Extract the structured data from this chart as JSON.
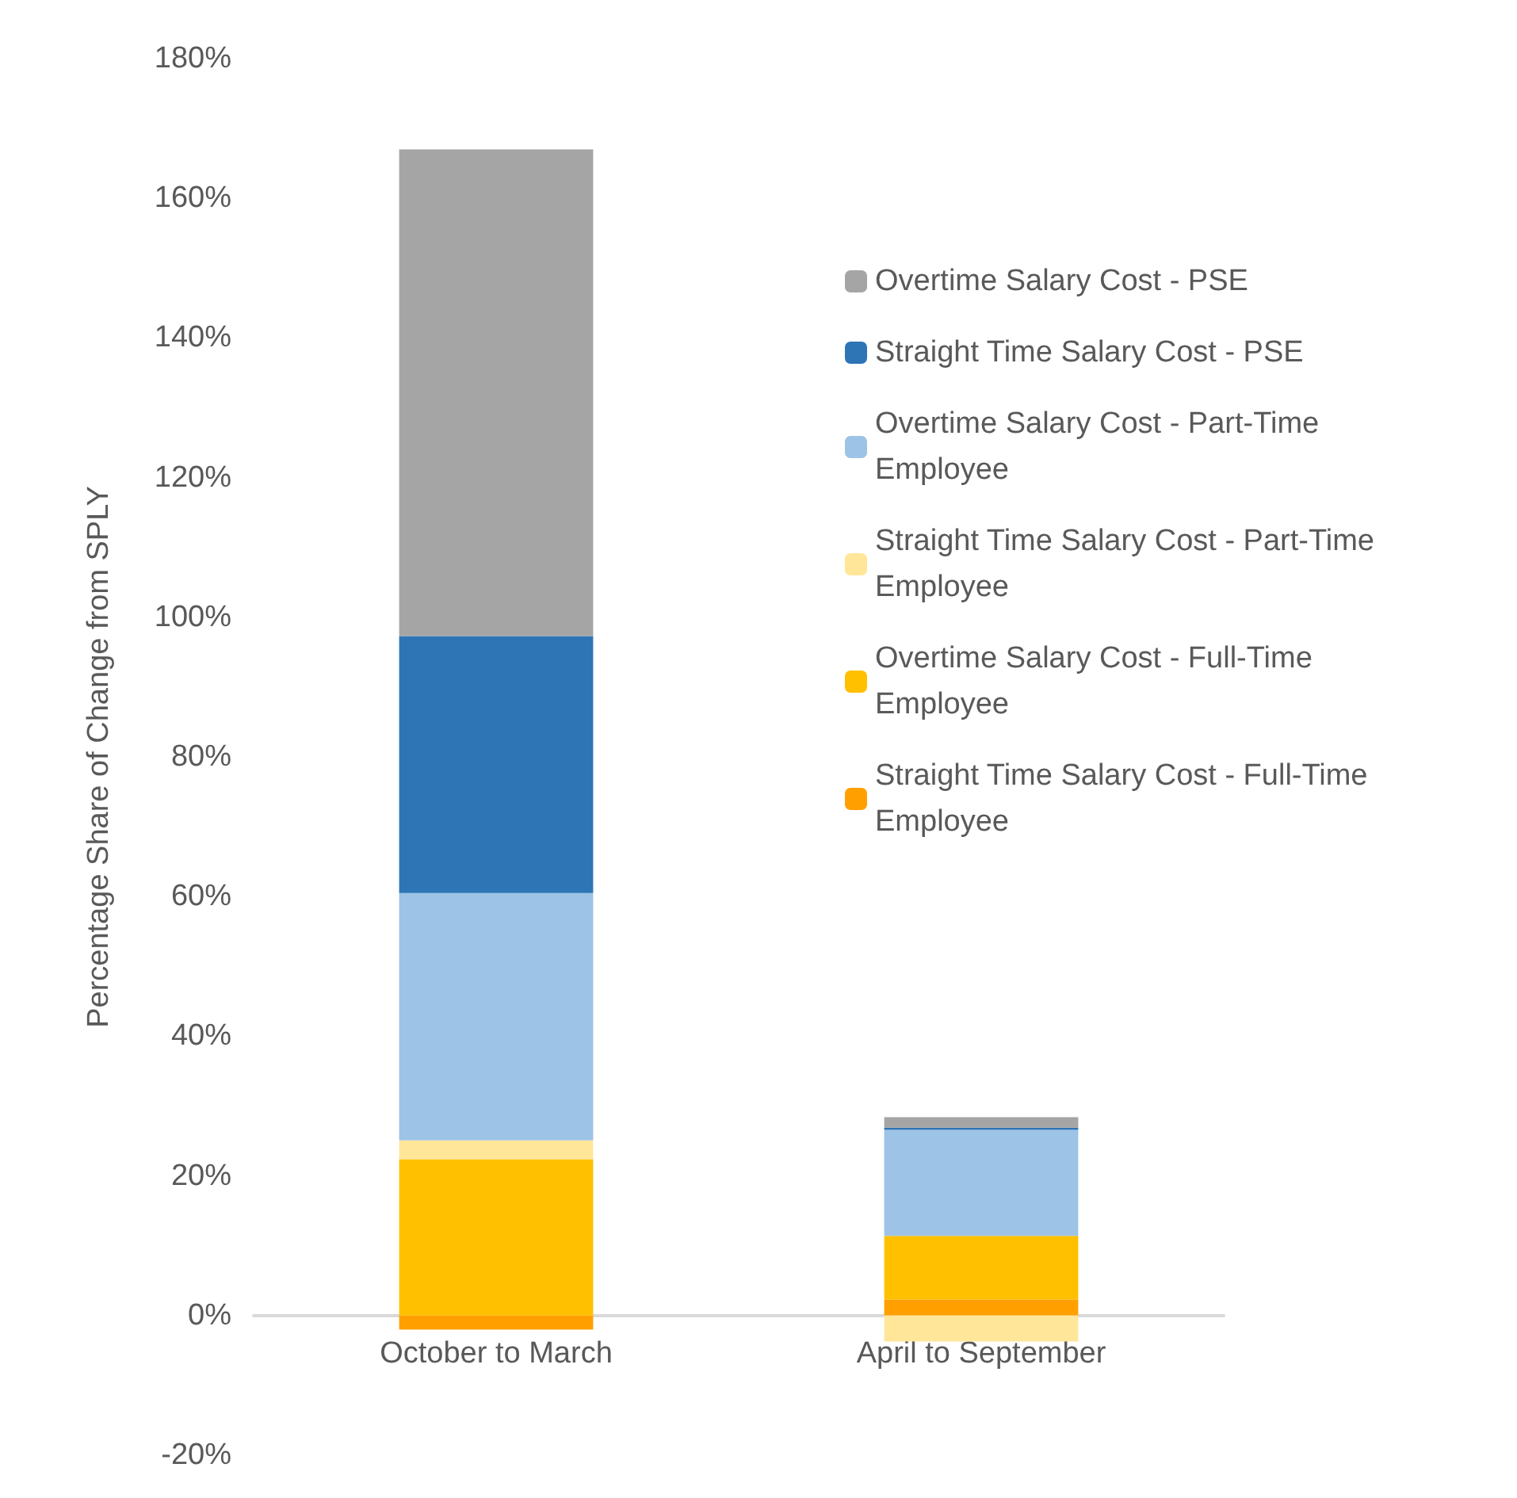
{
  "chart_data": {
    "type": "bar",
    "stacked": true,
    "ylabel": "Percentage Share of Change from SPLY",
    "categories": [
      "October to March",
      "April to September"
    ],
    "series": [
      {
        "name": "Straight Time Salary Cost - Full-Time Employee",
        "color": "#ffa000",
        "values": [
          -2,
          2.3
        ]
      },
      {
        "name": "Overtime Salary Cost - Full-Time Employee",
        "color": "#ffc000",
        "values": [
          22.4,
          9.1
        ]
      },
      {
        "name": "Straight Time Salary Cost - Part-Time Employee",
        "color": "#ffe699",
        "values": [
          2.7,
          -3.7
        ]
      },
      {
        "name": "Overtime Salary Cost - Part-Time Employee",
        "color": "#9dc3e6",
        "values": [
          35.4,
          15.2
        ]
      },
      {
        "name": "Straight Time Salary Cost - PSE",
        "color": "#2e75b6",
        "values": [
          36.8,
          0.3
        ]
      },
      {
        "name": "Overtime Salary Cost - PSE",
        "color": "#a5a5a5",
        "values": [
          69.7,
          1.5
        ]
      }
    ],
    "ylim": [
      -20,
      180
    ],
    "yticks": [
      {
        "value": -20,
        "label": "-20%"
      },
      {
        "value": 0,
        "label": "0%"
      },
      {
        "value": 20,
        "label": "20%"
      },
      {
        "value": 40,
        "label": "40%"
      },
      {
        "value": 60,
        "label": "60%"
      },
      {
        "value": 80,
        "label": "80%"
      },
      {
        "value": 100,
        "label": "100%"
      },
      {
        "value": 120,
        "label": "120%"
      },
      {
        "value": 140,
        "label": "140%"
      },
      {
        "value": 160,
        "label": "160%"
      },
      {
        "value": 180,
        "label": "180%"
      }
    ],
    "grid": false,
    "legend": "top right"
  }
}
